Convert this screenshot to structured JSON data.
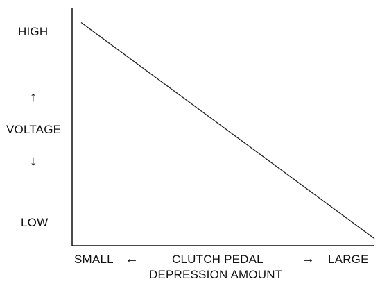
{
  "chart_data": {
    "type": "line",
    "y_axis": {
      "high_label": "HIGH",
      "title": "VOLTAGE",
      "low_label": "LOW",
      "up_arrow": "↑",
      "down_arrow": "↓"
    },
    "x_axis": {
      "small_label": "SMALL",
      "title_line1": "CLUTCH PEDAL",
      "title_line2": "DEPRESSION AMOUNT",
      "large_label": "LARGE",
      "left_arrow": "←",
      "right_arrow": "→"
    },
    "xlim": [
      0,
      1
    ],
    "ylim": [
      0,
      1
    ],
    "series": [
      {
        "x": [
          0.03,
          1.0
        ],
        "y": [
          0.94,
          0.03
        ]
      }
    ],
    "grid": false,
    "line_color": "#222222",
    "axis_color": "#111111"
  }
}
